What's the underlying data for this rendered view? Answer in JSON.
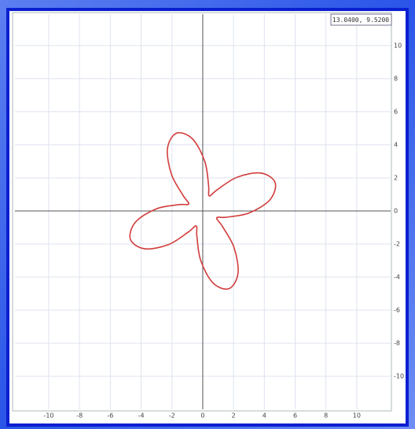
{
  "chart_data": {
    "type": "line",
    "readout": "13.0400, 9.5200",
    "x": [
      4.7,
      3.77,
      2.21,
      0.94,
      0.42,
      0.38,
      0.13,
      -0.67,
      -1.71,
      -2.29,
      -2.03,
      -1.28,
      -0.91,
      -1.54,
      -3.0,
      -4.36,
      -4.7,
      -3.77,
      -2.21,
      -0.94,
      -0.42,
      -0.38,
      -0.13,
      0.67,
      1.71,
      2.29,
      2.03,
      1.28,
      0.91,
      1.54,
      3.0,
      4.36
    ],
    "series": [
      {
        "color": "#d23c3c",
        "values": [
          1.71,
          2.29,
          2.03,
          1.28,
          0.91,
          1.54,
          3.0,
          4.36,
          4.7,
          3.77,
          2.21,
          0.94,
          0.42,
          0.38,
          0.13,
          -0.67,
          -1.71,
          -2.29,
          -2.03,
          -1.28,
          -0.91,
          -1.54,
          -3.0,
          -4.36,
          -4.7,
          -3.77,
          -2.21,
          -0.94,
          -0.42,
          -0.38,
          -0.13,
          0.67
        ]
      }
    ],
    "closed": true,
    "xlim": [
      -12.2,
      12.2
    ],
    "ylim": [
      -12,
      11.9
    ],
    "xticks": [
      -10,
      -8,
      -6,
      -4,
      -2,
      0,
      2,
      4,
      6,
      8,
      10
    ],
    "yticks": [
      -10,
      -8,
      -6,
      -4,
      -2,
      0,
      2,
      4,
      6,
      8,
      10
    ],
    "grid": true
  }
}
